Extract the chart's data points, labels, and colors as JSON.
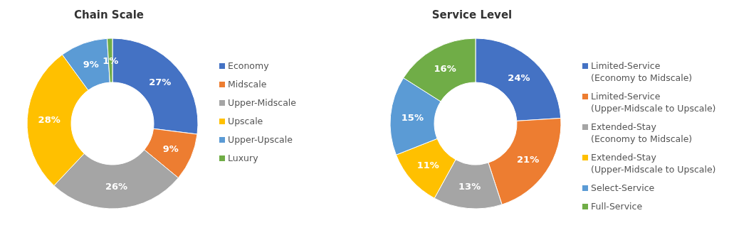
{
  "chart_data": [
    {
      "type": "donut",
      "title": "Chain Scale",
      "categories": [
        "Economy",
        "Midscale",
        "Upper-Midscale",
        "Upscale",
        "Upper-Upscale",
        "Luxury"
      ],
      "values": [
        27,
        9,
        26,
        28,
        9,
        1
      ],
      "value_labels": [
        "27%",
        "9%",
        "26%",
        "28%",
        "9%",
        "1%"
      ],
      "colors": [
        "#4472c4",
        "#ed7d31",
        "#a5a5a5",
        "#ffc000",
        "#5b9bd5",
        "#70ad47"
      ],
      "legend": "right"
    },
    {
      "type": "donut",
      "title": "Service Level",
      "categories": [
        "Limited-Service\n(Economy to Midscale)",
        "Limited-Service\n(Upper-Midscale to Upscale)",
        "Extended-Stay\n(Economy to Midscale)",
        "Extended-Stay\n(Upper-Midscale to Upscale)",
        "Select-Service",
        "Full-Service"
      ],
      "values": [
        24,
        21,
        13,
        11,
        15,
        16
      ],
      "value_labels": [
        "24%",
        "21%",
        "13%",
        "11%",
        "15%",
        "16%"
      ],
      "colors": [
        "#4472c4",
        "#ed7d31",
        "#a5a5a5",
        "#ffc000",
        "#5b9bd5",
        "#70ad47"
      ],
      "legend": "right"
    }
  ]
}
